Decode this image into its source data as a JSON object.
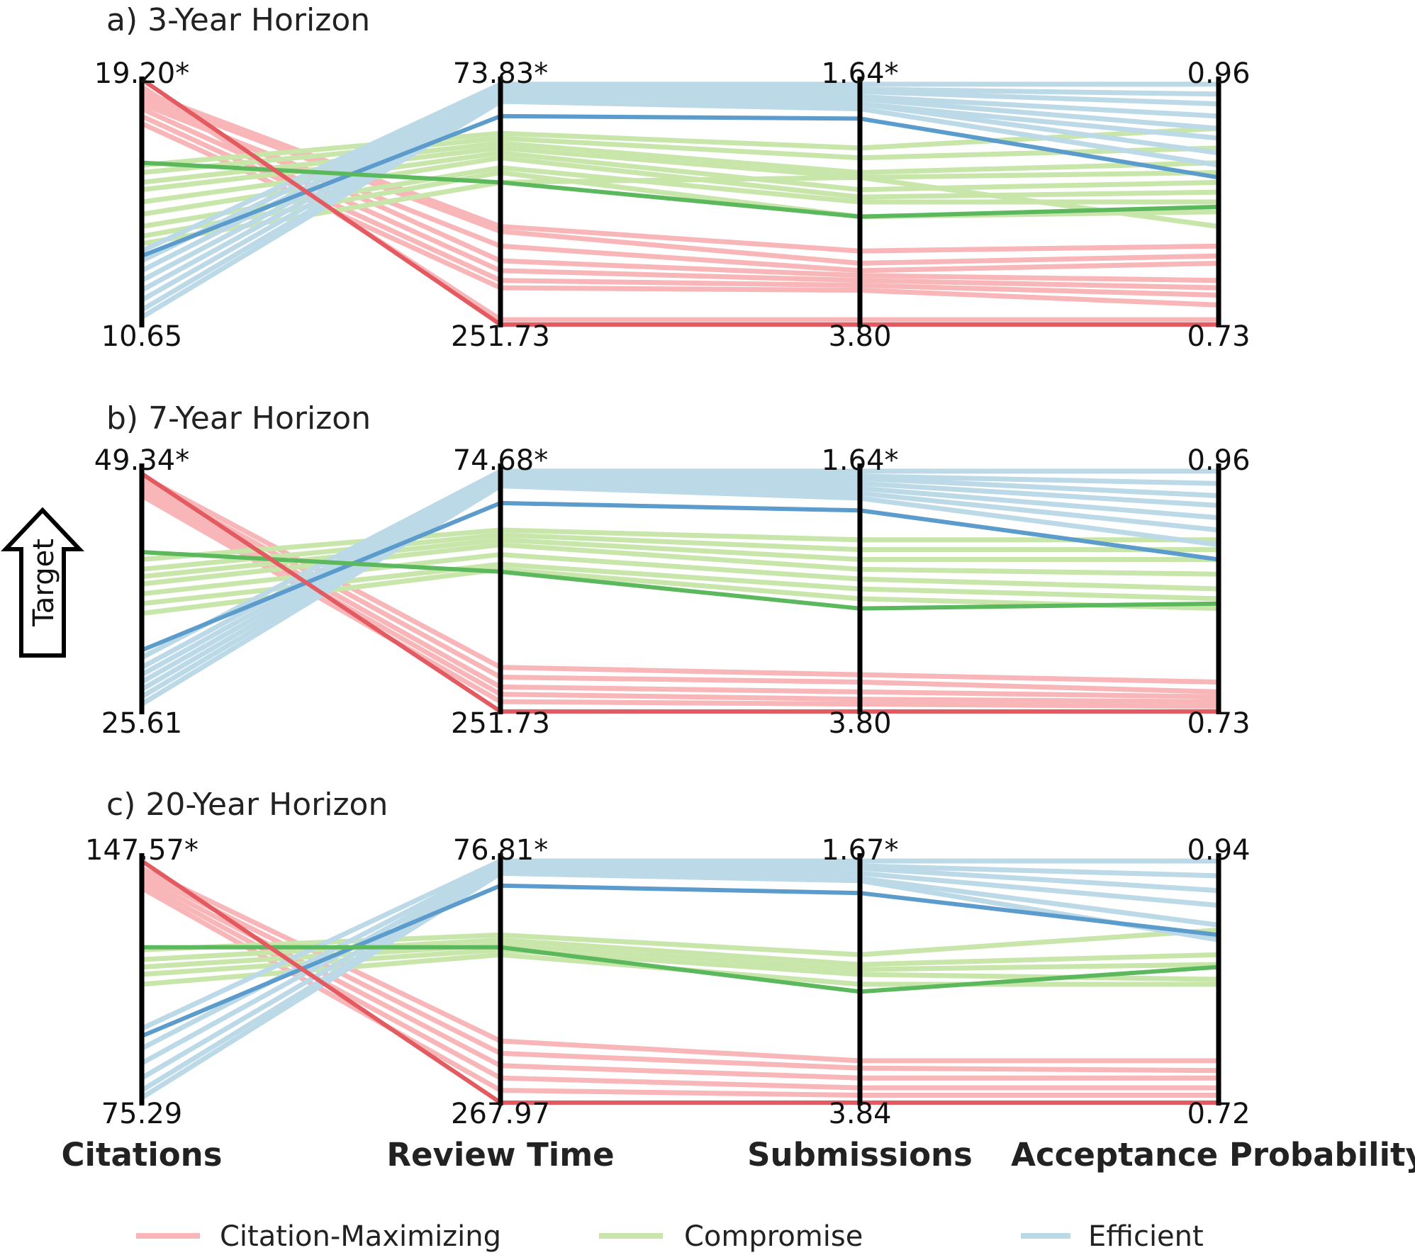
{
  "chart_data": {
    "type": "parallel-coordinates",
    "axes": [
      "Citations",
      "Review Time",
      "Submissions",
      "Acceptance Probability"
    ],
    "legend": {
      "position": "bottom",
      "entries": [
        {
          "name": "Citation-Maximizing",
          "color": "#f8b6b8"
        },
        {
          "name": "Compromise",
          "color": "#c8e6aa"
        },
        {
          "name": "Efficient",
          "color": "#bcd9e8"
        }
      ]
    },
    "target_label": "Target",
    "colors": {
      "cit_light": "#f8b6b8",
      "cit_dark": "#e35a60",
      "comp_light": "#c8e6aa",
      "comp_dark": "#5cb85c",
      "eff_light": "#bcd9e8",
      "eff_dark": "#5b9ccc"
    },
    "panels": [
      {
        "title": "a) 3-Year Horizon",
        "top_labels": [
          "19.20*",
          "73.83*",
          "1.64*",
          "0.96"
        ],
        "bottom_labels": [
          "10.65",
          "251.73",
          "3.80",
          "0.73"
        ],
        "note": "series values are normalized axis positions (1 = top label, 0 = bottom label)",
        "series": [
          {
            "group": "cit",
            "values": [
              0.95,
              0.4,
              0.3,
              0.32
            ]
          },
          {
            "group": "cit",
            "values": [
              0.93,
              0.38,
              0.25,
              0.28
            ]
          },
          {
            "group": "cit",
            "values": [
              0.9,
              0.32,
              0.22,
              0.25
            ]
          },
          {
            "group": "cit",
            "values": [
              0.92,
              0.26,
              0.2,
              0.18
            ]
          },
          {
            "group": "cit",
            "values": [
              0.88,
              0.22,
              0.18,
              0.15
            ]
          },
          {
            "group": "cit",
            "values": [
              0.85,
              0.18,
              0.16,
              0.12
            ]
          },
          {
            "group": "cit",
            "values": [
              0.82,
              0.15,
              0.14,
              0.08
            ]
          },
          {
            "group": "cit",
            "values": [
              0.97,
              0.02,
              0.02,
              0.02
            ]
          },
          {
            "group": "comp",
            "values": [
              0.65,
              0.78,
              0.72,
              0.8
            ]
          },
          {
            "group": "comp",
            "values": [
              0.62,
              0.76,
              0.68,
              0.72
            ]
          },
          {
            "group": "comp",
            "values": [
              0.58,
              0.74,
              0.62,
              0.66
            ]
          },
          {
            "group": "comp",
            "values": [
              0.55,
              0.72,
              0.6,
              0.62
            ]
          },
          {
            "group": "comp",
            "values": [
              0.5,
              0.7,
              0.55,
              0.58
            ]
          },
          {
            "group": "comp",
            "values": [
              0.45,
              0.68,
              0.52,
              0.54
            ]
          },
          {
            "group": "comp",
            "values": [
              0.4,
              0.64,
              0.5,
              0.5
            ]
          },
          {
            "group": "comp",
            "values": [
              0.36,
              0.62,
              0.44,
              0.46
            ]
          },
          {
            "group": "comp",
            "values": [
              0.33,
              0.58,
              0.6,
              0.4
            ]
          },
          {
            "group": "eff",
            "values": [
              0.3,
              0.98,
              0.98,
              0.98
            ]
          },
          {
            "group": "eff",
            "values": [
              0.26,
              0.97,
              0.96,
              0.94
            ]
          },
          {
            "group": "eff",
            "values": [
              0.22,
              0.96,
              0.95,
              0.9
            ]
          },
          {
            "group": "eff",
            "values": [
              0.18,
              0.95,
              0.93,
              0.85
            ]
          },
          {
            "group": "eff",
            "values": [
              0.14,
              0.94,
              0.92,
              0.8
            ]
          },
          {
            "group": "eff",
            "values": [
              0.1,
              0.93,
              0.9,
              0.76
            ]
          },
          {
            "group": "eff",
            "values": [
              0.06,
              0.92,
              0.9,
              0.7
            ]
          },
          {
            "group": "eff",
            "values": [
              0.03,
              0.91,
              0.88,
              0.65
            ]
          }
        ],
        "highlight": [
          {
            "group": "eff",
            "values": [
              0.28,
              0.85,
              0.84,
              0.6
            ]
          },
          {
            "group": "comp",
            "values": [
              0.66,
              0.58,
              0.44,
              0.48
            ]
          },
          {
            "group": "cit",
            "values": [
              1.0,
              0.0,
              0.0,
              0.0
            ]
          }
        ]
      },
      {
        "title": "b) 7-Year Horizon",
        "top_labels": [
          "49.34*",
          "74.68*",
          "1.64*",
          "0.96"
        ],
        "bottom_labels": [
          "25.61",
          "251.73",
          "3.80",
          "0.73"
        ],
        "note": "series values are normalized axis positions (1 = top label, 0 = bottom label)",
        "series": [
          {
            "group": "cit",
            "values": [
              0.96,
              0.18,
              0.15,
              0.12
            ]
          },
          {
            "group": "cit",
            "values": [
              0.94,
              0.14,
              0.12,
              0.08
            ]
          },
          {
            "group": "cit",
            "values": [
              0.92,
              0.1,
              0.08,
              0.06
            ]
          },
          {
            "group": "cit",
            "values": [
              0.9,
              0.07,
              0.05,
              0.04
            ]
          },
          {
            "group": "cit",
            "values": [
              0.88,
              0.04,
              0.03,
              0.02
            ]
          },
          {
            "group": "comp",
            "values": [
              0.62,
              0.74,
              0.7,
              0.7
            ]
          },
          {
            "group": "comp",
            "values": [
              0.58,
              0.72,
              0.66,
              0.66
            ]
          },
          {
            "group": "comp",
            "values": [
              0.55,
              0.7,
              0.62,
              0.62
            ]
          },
          {
            "group": "comp",
            "values": [
              0.52,
              0.68,
              0.58,
              0.56
            ]
          },
          {
            "group": "comp",
            "values": [
              0.48,
              0.64,
              0.54,
              0.5
            ]
          },
          {
            "group": "comp",
            "values": [
              0.44,
              0.6,
              0.5,
              0.46
            ]
          },
          {
            "group": "comp",
            "values": [
              0.4,
              0.58,
              0.46,
              0.42
            ]
          },
          {
            "group": "eff",
            "values": [
              0.22,
              0.98,
              0.98,
              0.98
            ]
          },
          {
            "group": "eff",
            "values": [
              0.18,
              0.97,
              0.96,
              0.93
            ]
          },
          {
            "group": "eff",
            "values": [
              0.15,
              0.96,
              0.95,
              0.88
            ]
          },
          {
            "group": "eff",
            "values": [
              0.12,
              0.95,
              0.93,
              0.84
            ]
          },
          {
            "group": "eff",
            "values": [
              0.09,
              0.94,
              0.91,
              0.79
            ]
          },
          {
            "group": "eff",
            "values": [
              0.06,
              0.93,
              0.89,
              0.74
            ]
          },
          {
            "group": "eff",
            "values": [
              0.03,
              0.92,
              0.87,
              0.68
            ]
          }
        ],
        "highlight": [
          {
            "group": "eff",
            "values": [
              0.25,
              0.85,
              0.82,
              0.62
            ]
          },
          {
            "group": "comp",
            "values": [
              0.65,
              0.57,
              0.42,
              0.44
            ]
          },
          {
            "group": "cit",
            "values": [
              0.97,
              0.0,
              0.0,
              0.0
            ]
          }
        ]
      },
      {
        "title": "c) 20-Year Horizon",
        "top_labels": [
          "147.57*",
          "76.81*",
          "1.67*",
          "0.94"
        ],
        "bottom_labels": [
          "75.29",
          "267.97",
          "3.84",
          "0.72"
        ],
        "note": "series values are normalized axis positions (1 = top label, 0 = bottom label)",
        "series": [
          {
            "group": "cit",
            "values": [
              0.95,
              0.25,
              0.17,
              0.17
            ]
          },
          {
            "group": "cit",
            "values": [
              0.93,
              0.2,
              0.14,
              0.13
            ]
          },
          {
            "group": "cit",
            "values": [
              0.91,
              0.15,
              0.1,
              0.1
            ]
          },
          {
            "group": "cit",
            "values": [
              0.89,
              0.1,
              0.06,
              0.06
            ]
          },
          {
            "group": "cit",
            "values": [
              0.87,
              0.05,
              0.03,
              0.03
            ]
          },
          {
            "group": "comp",
            "values": [
              0.62,
              0.68,
              0.6,
              0.7
            ]
          },
          {
            "group": "comp",
            "values": [
              0.58,
              0.66,
              0.56,
              0.6
            ]
          },
          {
            "group": "comp",
            "values": [
              0.55,
              0.64,
              0.54,
              0.56
            ]
          },
          {
            "group": "comp",
            "values": [
              0.52,
              0.62,
              0.52,
              0.5
            ]
          },
          {
            "group": "comp",
            "values": [
              0.48,
              0.6,
              0.48,
              0.48
            ]
          },
          {
            "group": "eff",
            "values": [
              0.3,
              0.98,
              0.98,
              0.98
            ]
          },
          {
            "group": "eff",
            "values": [
              0.22,
              0.97,
              0.96,
              0.92
            ]
          },
          {
            "group": "eff",
            "values": [
              0.16,
              0.96,
              0.95,
              0.86
            ]
          },
          {
            "group": "eff",
            "values": [
              0.1,
              0.95,
              0.93,
              0.8
            ]
          },
          {
            "group": "eff",
            "values": [
              0.05,
              0.94,
              0.91,
              0.72
            ]
          },
          {
            "group": "eff",
            "values": [
              0.02,
              0.93,
              0.9,
              0.66
            ]
          }
        ],
        "highlight": [
          {
            "group": "eff",
            "values": [
              0.27,
              0.88,
              0.85,
              0.68
            ]
          },
          {
            "group": "comp",
            "values": [
              0.63,
              0.63,
              0.45,
              0.55
            ]
          },
          {
            "group": "cit",
            "values": [
              0.98,
              0.0,
              0.0,
              0.0
            ]
          }
        ]
      }
    ]
  }
}
